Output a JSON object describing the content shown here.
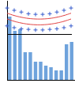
{
  "chart_data": [
    {
      "type": "line",
      "categories": [
        null,
        null,
        null,
        null,
        null,
        null,
        null,
        null,
        null,
        null
      ],
      "series": [
        {
          "color": "#3a5fcd",
          "marker": "plus",
          "line_style": "none",
          "values": [
            45,
            41,
            38,
            35,
            34,
            34,
            35,
            38,
            41,
            45
          ]
        },
        {
          "color": "#e04040",
          "marker": "none",
          "line_style": "solid",
          "values": [
            36,
            32,
            29,
            27,
            26,
            26,
            27,
            29,
            32,
            36
          ]
        },
        {
          "color": "#e04040",
          "marker": "none",
          "line_style": "solid",
          "values": [
            26,
            22,
            19,
            17,
            16,
            16,
            17,
            19,
            22,
            26
          ]
        },
        {
          "color": "#3a5fcd",
          "marker": "plus",
          "line_style": "none",
          "values": [
            14,
            11,
            9,
            8,
            7,
            7,
            8,
            9,
            11,
            14
          ]
        }
      ],
      "ylim": [
        0,
        52
      ],
      "tick_labels": false,
      "grid": false
    },
    {
      "type": "bar",
      "categories": [
        null,
        null,
        null,
        null,
        null,
        null,
        null,
        null,
        null,
        null,
        null,
        null,
        null
      ],
      "values": [
        80,
        62,
        64,
        35,
        35,
        23,
        23,
        18,
        16,
        12,
        12,
        45,
        48
      ],
      "color": "#6fa3dc",
      "ylim": [
        0,
        100
      ],
      "tick_labels": false,
      "grid": false
    }
  ]
}
